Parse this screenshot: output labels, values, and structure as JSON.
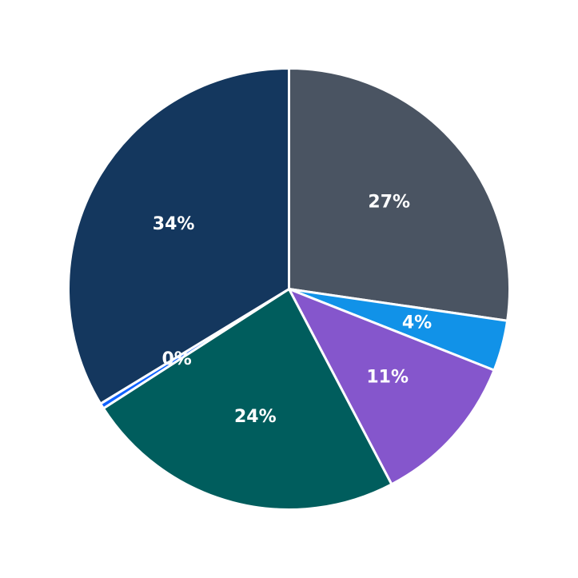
{
  "chart_data": {
    "type": "pie",
    "title": "",
    "start_angle_deg": 0,
    "direction": "clockwise",
    "slices": [
      {
        "label": "27%",
        "value": 27.3,
        "color": "#4a5462"
      },
      {
        "label": "4%",
        "value": 3.7,
        "color": "#1192e8"
      },
      {
        "label": "11%",
        "value": 11.3,
        "color": "#8556cc"
      },
      {
        "label": "24%",
        "value": 23.6,
        "color": "#005d5d"
      },
      {
        "label": "0%",
        "value": 0.4,
        "color": "#0f62fe"
      },
      {
        "label": "34%",
        "value": 33.7,
        "color": "#14375e"
      }
    ]
  }
}
